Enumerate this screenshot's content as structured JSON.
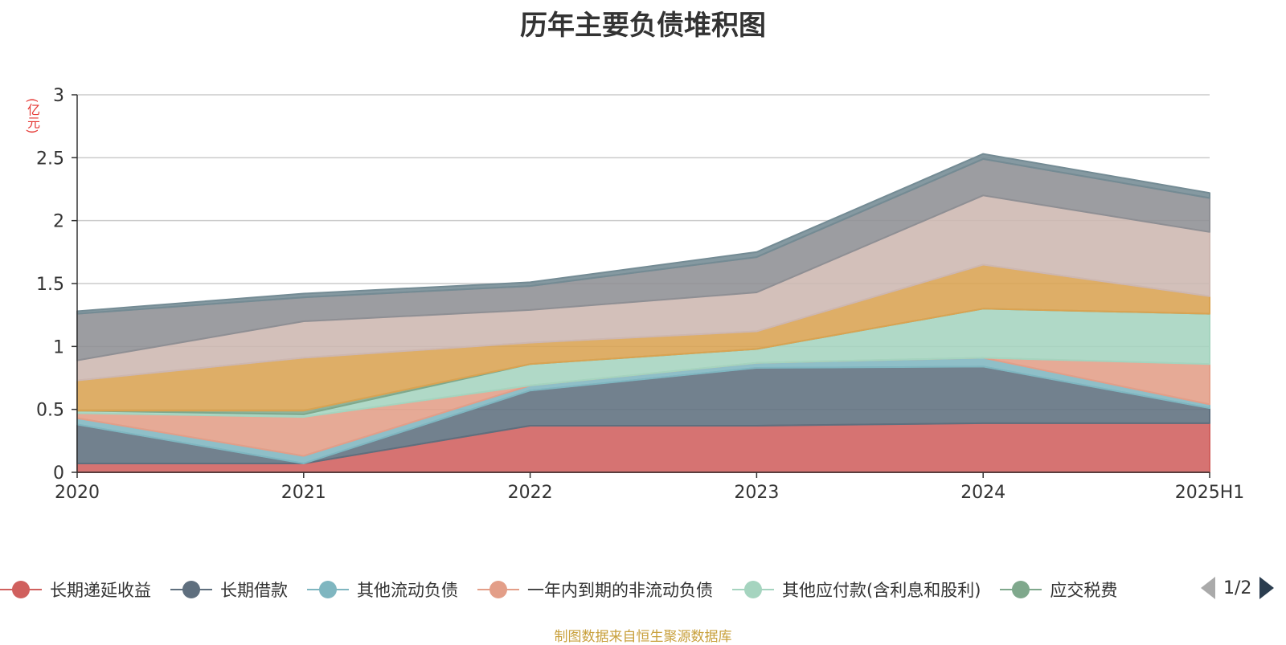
{
  "chart_data": {
    "type": "area",
    "stacked": true,
    "title": "历年主要负债堆积图",
    "unit": "(亿元)",
    "x": [
      "2020",
      "2021",
      "2022",
      "2023",
      "2024",
      "2025H1"
    ],
    "ylim": [
      0,
      3
    ],
    "yticks": [
      "0",
      "0.5",
      "1",
      "1.5",
      "2",
      "2.5",
      "3"
    ],
    "grid": true,
    "legend_position": "bottom",
    "legend_page": "1/2",
    "series": [
      {
        "name": "长期递延收益",
        "color": "#d0605e",
        "values": [
          0.07,
          0.07,
          0.37,
          0.37,
          0.39,
          0.39
        ]
      },
      {
        "name": "长期借款",
        "color": "#5f6f7e",
        "values": [
          0.31,
          0.0,
          0.28,
          0.46,
          0.45,
          0.12
        ]
      },
      {
        "name": "其他流动负债",
        "color": "#7fb6c0",
        "values": [
          0.05,
          0.06,
          0.04,
          0.04,
          0.07,
          0.03
        ]
      },
      {
        "name": "一年内到期的非流动负债",
        "color": "#e39e88",
        "values": [
          0.04,
          0.31,
          0.0,
          0.0,
          0.0,
          0.32
        ]
      },
      {
        "name": "其他应付款(含利息和股利)",
        "color": "#a5d4bf",
        "values": [
          0.02,
          0.02,
          0.17,
          0.11,
          0.39,
          0.4
        ]
      },
      {
        "name": "应交税费",
        "color": "#7fa88c",
        "values": [
          0.0,
          0.03,
          0.0,
          0.0,
          0.0,
          0.0
        ]
      },
      {
        "name": "",
        "color": "#d9a352",
        "values": [
          0.24,
          0.42,
          0.17,
          0.14,
          0.35,
          0.14
        ]
      },
      {
        "name": "",
        "color": "#cdb7b1",
        "values": [
          0.16,
          0.29,
          0.26,
          0.31,
          0.55,
          0.51
        ]
      },
      {
        "name": "",
        "color": "#8e8f94",
        "values": [
          0.37,
          0.19,
          0.19,
          0.28,
          0.29,
          0.27
        ]
      },
      {
        "name": "",
        "color": "#748b94",
        "values": [
          0.02,
          0.03,
          0.03,
          0.04,
          0.04,
          0.04
        ]
      }
    ]
  },
  "source_note": "制图数据来自恒生聚源数据库"
}
